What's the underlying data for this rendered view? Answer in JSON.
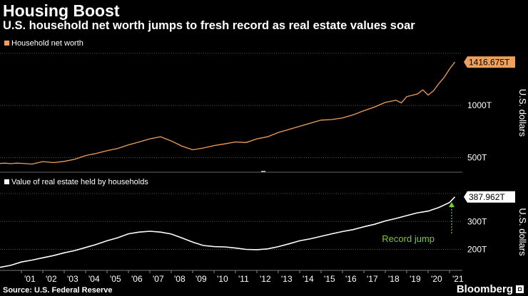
{
  "header": {
    "title": "Housing Boost",
    "subtitle": "U.S. household net worth jumps to fresh record as real estate values soar"
  },
  "footer": {
    "source": "Source: U.S. Federal Reserve",
    "logo": "Bloomberg"
  },
  "colors": {
    "background": "#000000",
    "net_worth_line": "#f0a058",
    "real_estate_line": "#ffffff",
    "annotation": "#7ec73a",
    "grid": "#555555"
  },
  "chart_data": [
    {
      "type": "line",
      "legend": "Household net worth",
      "ylabel": "U.S. dollars",
      "ylim": [
        360,
        1500
      ],
      "yticks": [
        500,
        1000
      ],
      "ytick_labels": [
        "500T",
        "1000T"
      ],
      "last_value_label": "1416.675T",
      "grid": true,
      "legend_position": "top-left",
      "series": [
        {
          "x": [
            2000.0,
            2000.25,
            2000.5,
            2000.75,
            2001.0,
            2001.5,
            2002.0,
            2002.5,
            2003.0,
            2003.5,
            2004.0,
            2004.5,
            2005.0,
            2005.5,
            2006.0,
            2006.5,
            2007.0,
            2007.5,
            2008.0,
            2008.5,
            2009.0,
            2009.5,
            2010.0,
            2010.5,
            2011.0,
            2011.5,
            2012.0,
            2012.5,
            2013.0,
            2013.5,
            2014.0,
            2014.5,
            2015.0,
            2015.5,
            2016.0,
            2016.5,
            2017.0,
            2017.5,
            2018.0,
            2018.5,
            2018.75,
            2019.0,
            2019.5,
            2019.75,
            2020.0,
            2020.25,
            2020.5,
            2020.75,
            2021.0,
            2021.25
          ],
          "values": [
            444,
            447,
            442,
            447,
            445,
            438,
            462,
            452,
            464,
            485,
            520,
            540,
            566,
            588,
            622,
            650,
            680,
            700,
            660,
            610,
            575,
            592,
            615,
            632,
            650,
            645,
            680,
            700,
            740,
            770,
            800,
            830,
            860,
            865,
            880,
            910,
            950,
            985,
            1030,
            1050,
            1025,
            1085,
            1110,
            1150,
            1100,
            1140,
            1210,
            1270,
            1350,
            1416.675
          ]
        }
      ]
    },
    {
      "type": "line",
      "legend": "Value of real estate held by households",
      "ylabel": "U.S. dollars",
      "ylim": [
        125,
        400
      ],
      "yticks": [
        200,
        300
      ],
      "ytick_labels": [
        "200T",
        "300T"
      ],
      "last_value_label": "387.962T",
      "grid": true,
      "legend_position": "top-left",
      "annotation": "Record jump",
      "xlabels": [
        "'01",
        "'02",
        "'03",
        "'04",
        "'05",
        "'06",
        "'07",
        "'08",
        "'09",
        "'10",
        "'11",
        "'12",
        "'13",
        "'14",
        "'15",
        "'16",
        "'17",
        "'18",
        "'19",
        "'20",
        "'21"
      ],
      "xticks": [
        2001,
        2002,
        2003,
        2004,
        2005,
        2006,
        2007,
        2008,
        2009,
        2010,
        2011,
        2012,
        2013,
        2014,
        2015,
        2016,
        2017,
        2018,
        2019,
        2020,
        2021
      ],
      "series": [
        {
          "x": [
            2000.0,
            2000.5,
            2001.0,
            2001.5,
            2002.0,
            2002.5,
            2003.0,
            2003.5,
            2004.0,
            2004.5,
            2005.0,
            2005.5,
            2006.0,
            2006.5,
            2007.0,
            2007.5,
            2008.0,
            2008.5,
            2009.0,
            2009.5,
            2010.0,
            2010.5,
            2011.0,
            2011.5,
            2012.0,
            2012.5,
            2013.0,
            2013.5,
            2014.0,
            2014.5,
            2015.0,
            2015.5,
            2016.0,
            2016.5,
            2017.0,
            2017.5,
            2018.0,
            2018.5,
            2019.0,
            2019.5,
            2020.0,
            2020.5,
            2021.0,
            2021.25
          ],
          "values": [
            136,
            143,
            155,
            162,
            170,
            178,
            188,
            196,
            207,
            218,
            231,
            242,
            256,
            262,
            265,
            262,
            255,
            241,
            226,
            214,
            210,
            209,
            205,
            200,
            199,
            202,
            210,
            220,
            231,
            238,
            247,
            256,
            264,
            271,
            281,
            290,
            302,
            311,
            321,
            331,
            337,
            350,
            368,
            387.962
          ]
        }
      ]
    }
  ]
}
